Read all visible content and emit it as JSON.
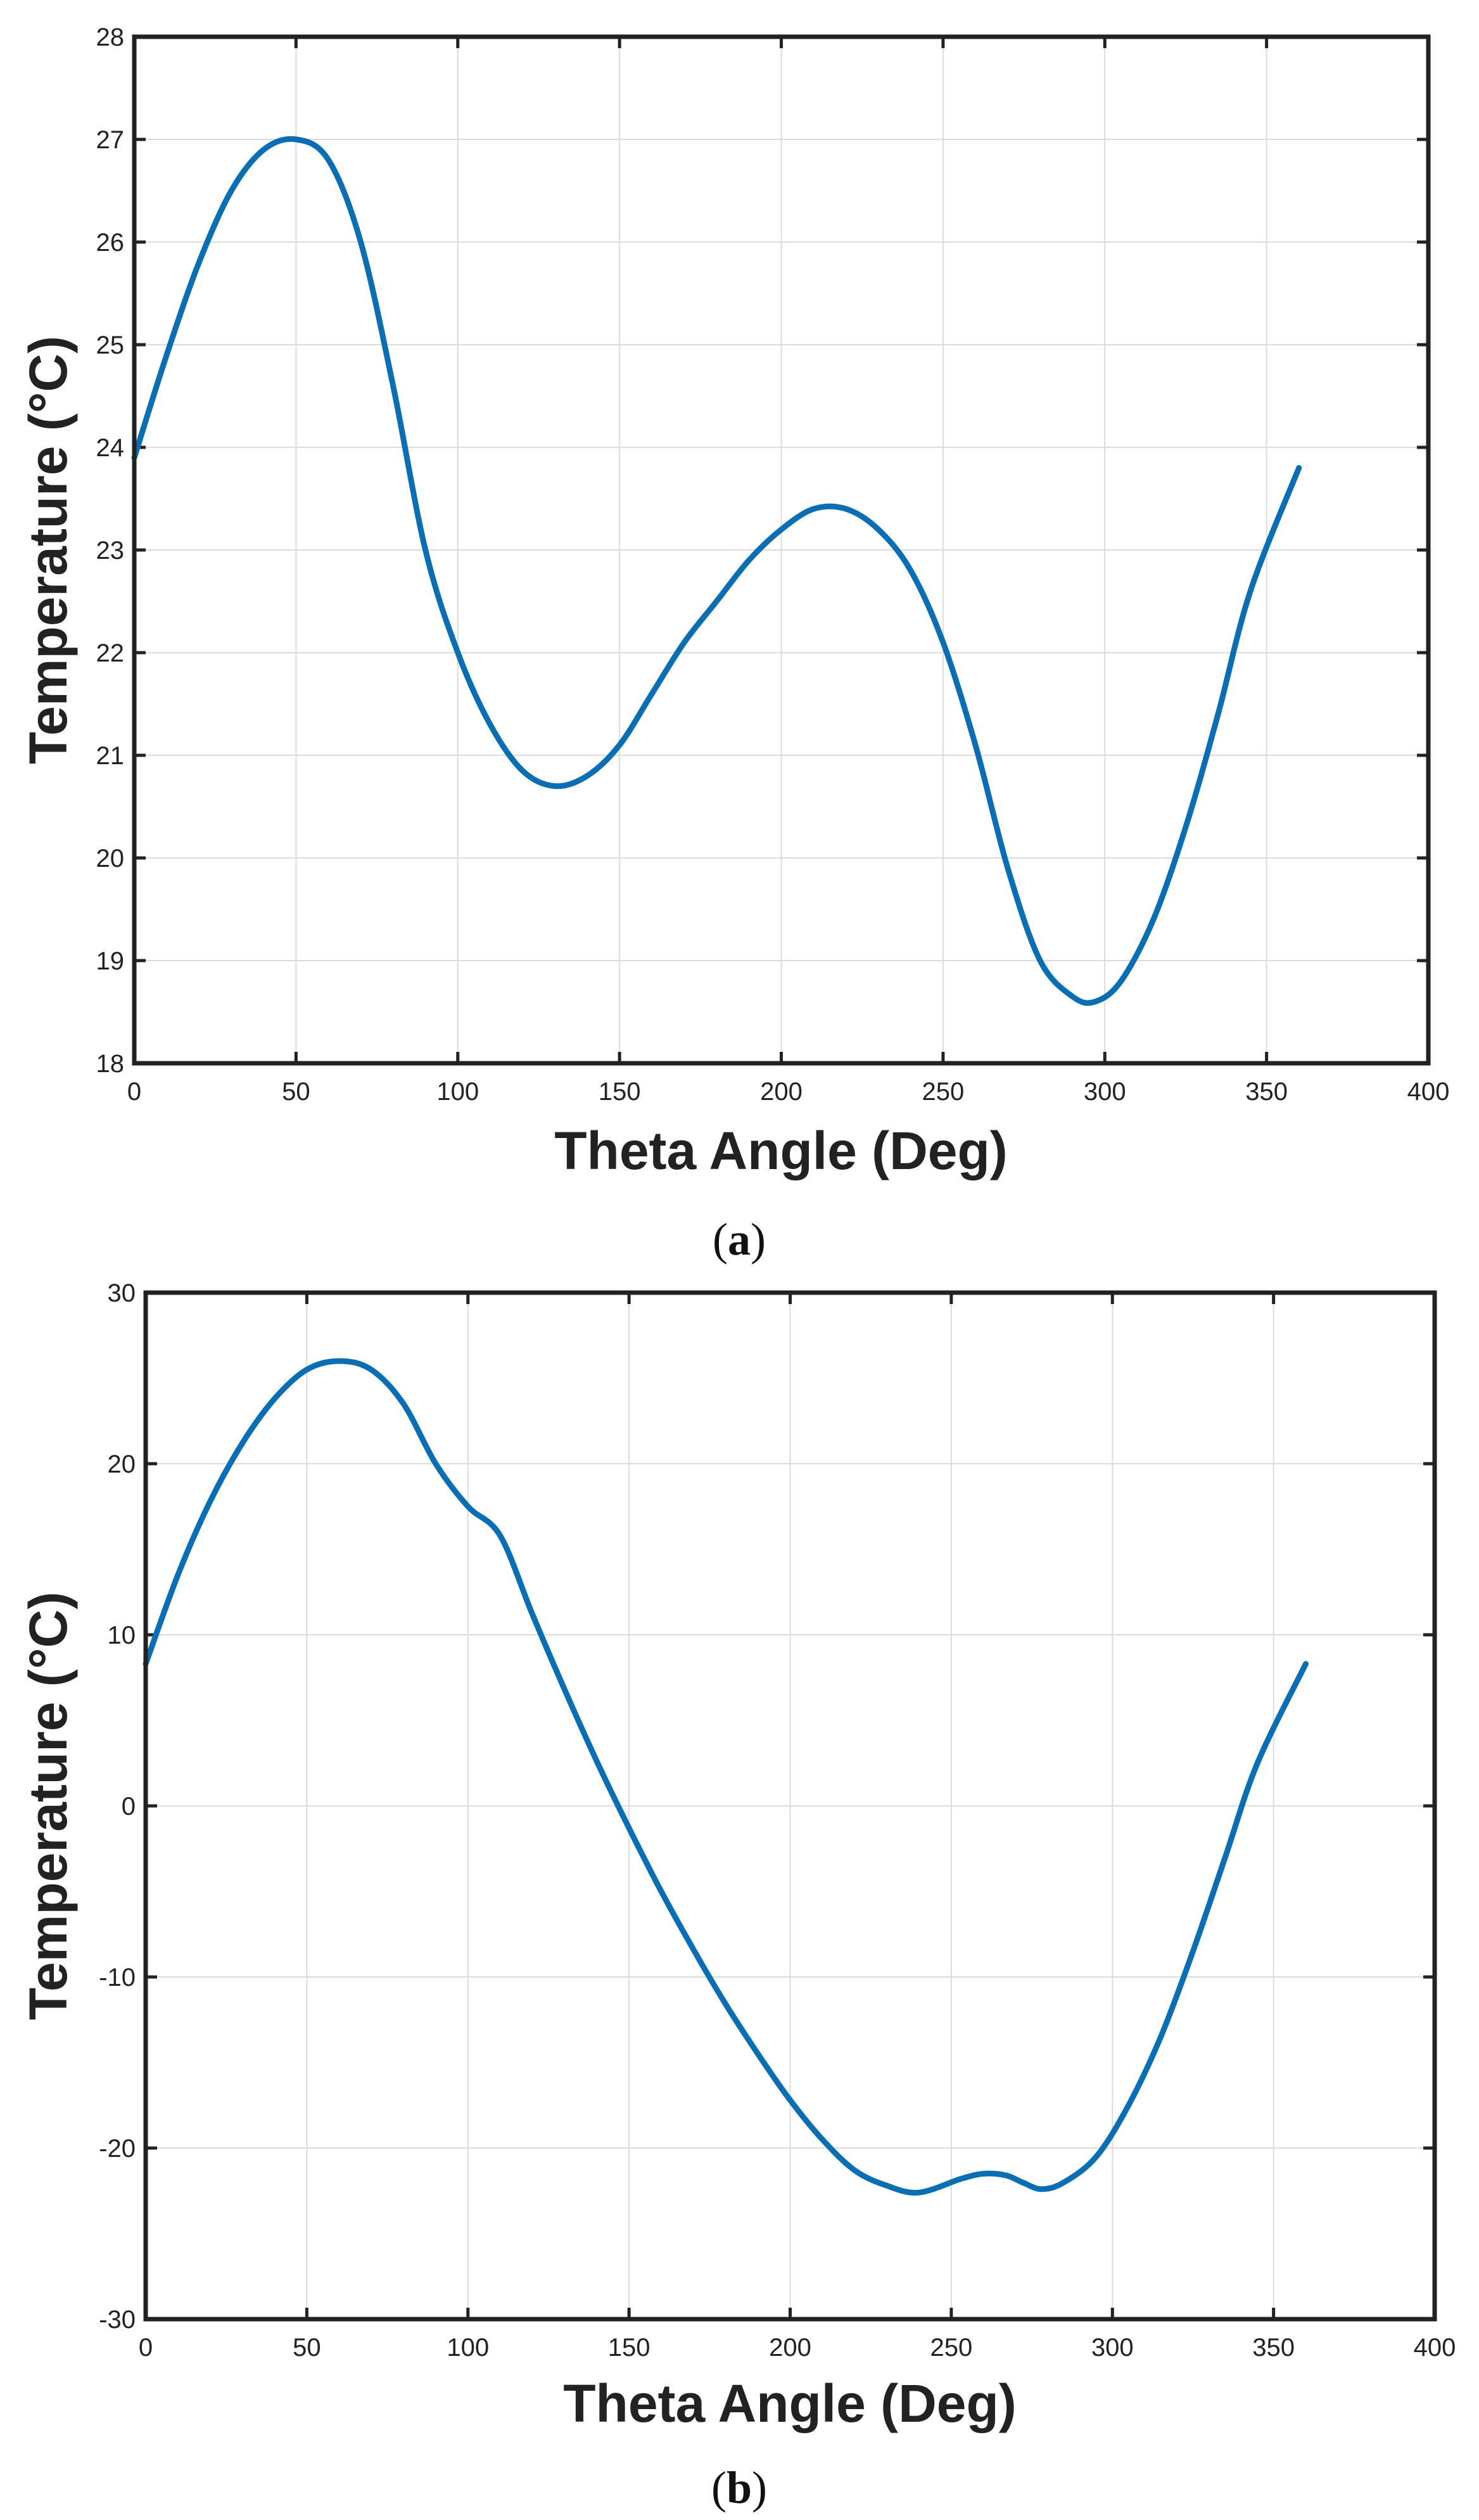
{
  "colors": {
    "series": "#0a6eb4",
    "frame": "#222222",
    "grid": "#dcdcdc"
  },
  "chart_data": [
    {
      "type": "line",
      "panel": "a",
      "caption_letter": "a",
      "title": "",
      "xlabel": "Theta Angle (Deg)",
      "ylabel": "Temperature  (°C)",
      "xlim": [
        0,
        400
      ],
      "ylim": [
        18,
        28
      ],
      "xticks": [
        0,
        50,
        100,
        150,
        200,
        250,
        300,
        350,
        400
      ],
      "yticks": [
        18,
        19,
        20,
        21,
        22,
        23,
        24,
        25,
        26,
        27,
        28
      ],
      "grid": true,
      "series": [
        {
          "name": "Temperature",
          "x": [
            0,
            10,
            20,
            30,
            40,
            50,
            60,
            70,
            80,
            90,
            100,
            110,
            120,
            130,
            140,
            150,
            160,
            170,
            180,
            190,
            200,
            210,
            220,
            230,
            240,
            250,
            260,
            270,
            280,
            290,
            297,
            305,
            315,
            325,
            335,
            345,
            360
          ],
          "y": [
            23.9,
            24.9,
            25.8,
            26.5,
            26.9,
            27.0,
            26.8,
            26.0,
            24.6,
            23.0,
            22.0,
            21.3,
            20.85,
            20.7,
            20.8,
            21.1,
            21.6,
            22.1,
            22.5,
            22.9,
            23.2,
            23.4,
            23.4,
            23.2,
            22.8,
            22.1,
            21.1,
            19.9,
            19.0,
            18.65,
            18.6,
            18.8,
            19.4,
            20.3,
            21.4,
            22.6,
            23.8
          ]
        }
      ]
    },
    {
      "type": "line",
      "panel": "b",
      "caption_letter": "b",
      "title": "",
      "xlabel": "Theta Angle (Deg)",
      "ylabel": "Temperature  (°C)",
      "xlim": [
        0,
        400
      ],
      "ylim": [
        -30,
        30
      ],
      "xticks": [
        0,
        50,
        100,
        150,
        200,
        250,
        300,
        350,
        400
      ],
      "yticks": [
        -30,
        -20,
        -10,
        0,
        10,
        20,
        30
      ],
      "grid": true,
      "series": [
        {
          "name": "Temperature",
          "x": [
            0,
            10,
            20,
            30,
            40,
            50,
            60,
            70,
            80,
            90,
            100,
            110,
            120,
            130,
            140,
            150,
            160,
            170,
            180,
            190,
            200,
            210,
            220,
            230,
            240,
            253,
            260,
            267,
            272,
            278,
            285,
            295,
            305,
            315,
            325,
            335,
            345,
            360
          ],
          "y": [
            8.3,
            13.5,
            17.8,
            21.2,
            23.8,
            25.5,
            26.0,
            25.5,
            23.5,
            20.0,
            17.5,
            15.8,
            11.2,
            6.8,
            2.6,
            -1.3,
            -5.0,
            -8.4,
            -11.6,
            -14.5,
            -17.2,
            -19.5,
            -21.3,
            -22.2,
            -22.6,
            -21.8,
            -21.5,
            -21.6,
            -22.0,
            -22.4,
            -22.0,
            -20.5,
            -17.5,
            -13.5,
            -8.5,
            -3.0,
            2.5,
            8.3
          ]
        }
      ]
    }
  ]
}
